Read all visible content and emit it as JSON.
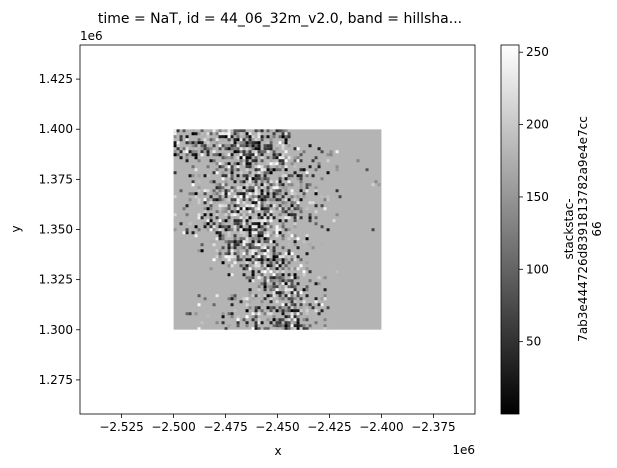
{
  "chart_data": {
    "type": "heatmap",
    "title": "time = NaT, id = 44_06_32m_v2.0, band = hillsha...",
    "xlabel": "x",
    "ylabel": "y",
    "x_offset_label": "1e6",
    "y_offset_label": "1e6",
    "xlim": [
      -2.545,
      -2.355
    ],
    "ylim": [
      1.258,
      1.442
    ],
    "x_ticks": [
      -2.525,
      -2.5,
      -2.475,
      -2.45,
      -2.425,
      -2.4,
      -2.375
    ],
    "x_tick_labels": [
      "−2.525",
      "−2.500",
      "−2.475",
      "−2.450",
      "−2.425",
      "−2.400",
      "−2.375"
    ],
    "y_ticks": [
      1.275,
      1.3,
      1.325,
      1.35,
      1.375,
      1.4,
      1.425
    ],
    "y_tick_labels": [
      "1.275",
      "1.300",
      "1.325",
      "1.350",
      "1.375",
      "1.400",
      "1.425"
    ],
    "raster_extent": {
      "x": [
        -2.5,
        -2.4
      ],
      "y": [
        1.3,
        1.4
      ]
    },
    "raster_background_value": 180,
    "grid": false,
    "colormap": "gray",
    "colorbar": {
      "range": [
        0,
        255
      ],
      "ticks": [
        50,
        100,
        150,
        200,
        250
      ],
      "tick_labels": [
        "50",
        "100",
        "150",
        "200",
        "250"
      ],
      "label_lines": [
        "stackstac-",
        "7ab3e444726d8391813782a9e4e7cc",
        "66"
      ]
    }
  },
  "colors": {
    "axis": "#000000",
    "colormap_low": "#000000",
    "colormap_high": "#ffffff"
  }
}
